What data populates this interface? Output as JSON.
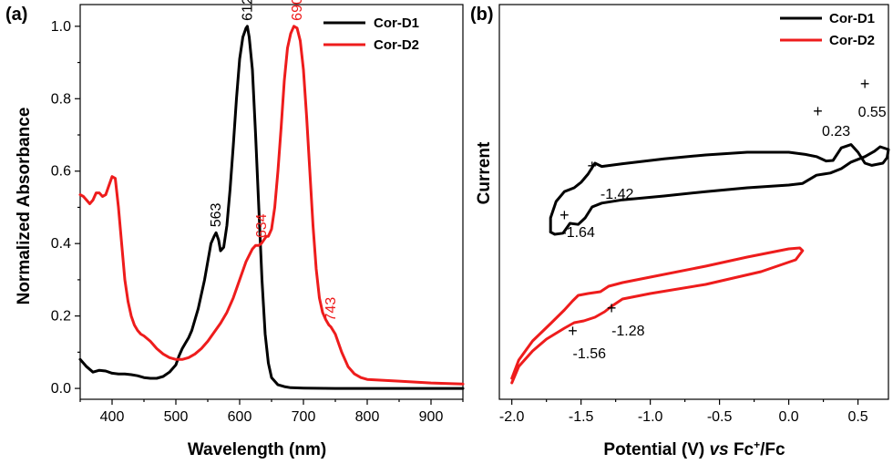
{
  "colors": {
    "cor_d1": "#000000",
    "cor_d2": "#ee1c1c"
  },
  "chart_data": [
    {
      "panel": "(a)",
      "type": "line",
      "xlabel": "Wavelength (nm)",
      "ylabel": "Normalized Absorbance",
      "xlim": [
        350,
        950
      ],
      "ylim": [
        -0.03,
        1.06
      ],
      "xticks": [
        "400",
        "500",
        "600",
        "700",
        "800",
        "900"
      ],
      "yticks": [
        "0.0",
        "0.2",
        "0.4",
        "0.6",
        "0.8",
        "1.0"
      ],
      "legend": {
        "placement": "top-right"
      },
      "series": [
        {
          "name": "Cor-D1",
          "color": "#000000",
          "x": [
            350,
            360,
            370,
            380,
            390,
            400,
            410,
            420,
            430,
            440,
            450,
            460,
            470,
            480,
            490,
            500,
            505,
            510,
            515,
            520,
            525,
            530,
            535,
            540,
            545,
            550,
            555,
            560,
            563,
            567,
            570,
            575,
            580,
            585,
            590,
            595,
            600,
            605,
            610,
            612,
            615,
            620,
            625,
            630,
            635,
            640,
            645,
            650,
            660,
            670,
            680,
            700,
            750,
            800,
            850,
            900,
            950
          ],
          "y": [
            0.08,
            0.06,
            0.045,
            0.05,
            0.048,
            0.042,
            0.04,
            0.04,
            0.038,
            0.035,
            0.03,
            0.028,
            0.028,
            0.033,
            0.045,
            0.065,
            0.09,
            0.11,
            0.125,
            0.14,
            0.16,
            0.19,
            0.22,
            0.26,
            0.3,
            0.35,
            0.4,
            0.42,
            0.43,
            0.41,
            0.38,
            0.39,
            0.45,
            0.55,
            0.67,
            0.8,
            0.91,
            0.97,
            0.995,
            1.0,
            0.97,
            0.88,
            0.7,
            0.5,
            0.3,
            0.15,
            0.07,
            0.03,
            0.01,
            0.005,
            0.002,
            0.001,
            0.0,
            0.0,
            0.0,
            0.0,
            0.0
          ]
        },
        {
          "name": "Cor-D2",
          "color": "#ee1c1c",
          "x": [
            350,
            355,
            360,
            365,
            370,
            375,
            380,
            385,
            390,
            395,
            400,
            405,
            410,
            415,
            420,
            425,
            430,
            435,
            440,
            445,
            450,
            460,
            470,
            480,
            490,
            500,
            510,
            520,
            530,
            540,
            550,
            560,
            570,
            580,
            590,
            600,
            610,
            620,
            625,
            630,
            634,
            638,
            642,
            645,
            650,
            655,
            660,
            665,
            670,
            675,
            680,
            685,
            690,
            695,
            700,
            705,
            710,
            715,
            720,
            725,
            730,
            735,
            740,
            743,
            750,
            760,
            770,
            780,
            790,
            800,
            850,
            900,
            950
          ],
          "y": [
            0.535,
            0.53,
            0.52,
            0.51,
            0.52,
            0.54,
            0.54,
            0.53,
            0.535,
            0.56,
            0.585,
            0.58,
            0.5,
            0.4,
            0.3,
            0.24,
            0.2,
            0.175,
            0.16,
            0.15,
            0.145,
            0.13,
            0.11,
            0.095,
            0.085,
            0.08,
            0.08,
            0.085,
            0.095,
            0.11,
            0.13,
            0.155,
            0.18,
            0.21,
            0.25,
            0.3,
            0.35,
            0.385,
            0.395,
            0.395,
            0.4,
            0.41,
            0.42,
            0.42,
            0.44,
            0.5,
            0.6,
            0.72,
            0.85,
            0.94,
            0.98,
            1.0,
            0.995,
            0.96,
            0.88,
            0.75,
            0.6,
            0.45,
            0.33,
            0.25,
            0.21,
            0.19,
            0.175,
            0.17,
            0.15,
            0.1,
            0.06,
            0.04,
            0.03,
            0.025,
            0.02,
            0.015,
            0.012
          ]
        }
      ],
      "annotations": [
        {
          "text": "612",
          "x": 612,
          "y": 1.0,
          "color": "#000000"
        },
        {
          "text": "563",
          "x": 563,
          "y": 0.43,
          "color": "#000000"
        },
        {
          "text": "690",
          "x": 690,
          "y": 1.0,
          "color": "#ee1c1c"
        },
        {
          "text": "634",
          "x": 634,
          "y": 0.4,
          "color": "#ee1c1c"
        },
        {
          "text": "743",
          "x": 743,
          "y": 0.17,
          "color": "#ee1c1c"
        }
      ]
    },
    {
      "panel": "(b)",
      "type": "line",
      "xlabel_parts": [
        "Potential (V) ",
        "vs",
        " Fc",
        "+",
        "/Fc"
      ],
      "ylabel": "Current",
      "xlim": [
        -2.09,
        0.72
      ],
      "xticks": [
        "-2.0",
        "-1.5",
        "-1.0",
        "-0.5",
        "0.0",
        "0.5"
      ],
      "y_ticks_shown": false,
      "legend": {
        "placement": "top-right"
      },
      "series": [
        {
          "name": "Cor-D1",
          "color": "#000000",
          "loop": [
            [
              -1.72,
              -0.86
            ],
            [
              -1.69,
              -0.9
            ],
            [
              -1.63,
              -0.88
            ],
            [
              -1.58,
              -0.7
            ],
            [
              -1.52,
              -0.72
            ],
            [
              -1.47,
              -0.6
            ],
            [
              -1.42,
              -0.4
            ],
            [
              -1.35,
              -0.33
            ],
            [
              -1.2,
              -0.27
            ],
            [
              -0.9,
              -0.2
            ],
            [
              -0.6,
              -0.12
            ],
            [
              -0.3,
              -0.05
            ],
            [
              0.0,
              0.0
            ],
            [
              0.1,
              0.03
            ],
            [
              0.16,
              0.12
            ],
            [
              0.2,
              0.18
            ],
            [
              0.25,
              0.2
            ],
            [
              0.3,
              0.22
            ],
            [
              0.38,
              0.3
            ],
            [
              0.45,
              0.42
            ],
            [
              0.55,
              0.52
            ],
            [
              0.62,
              0.62
            ],
            [
              0.66,
              0.7
            ],
            [
              0.72,
              0.65
            ],
            [
              0.71,
              0.5
            ],
            [
              0.68,
              0.4
            ],
            [
              0.6,
              0.36
            ],
            [
              0.55,
              0.4
            ],
            [
              0.5,
              0.6
            ],
            [
              0.45,
              0.74
            ],
            [
              0.38,
              0.68
            ],
            [
              0.32,
              0.45
            ],
            [
              0.27,
              0.44
            ],
            [
              0.2,
              0.52
            ],
            [
              0.12,
              0.56
            ],
            [
              0.0,
              0.6
            ],
            [
              -0.3,
              0.6
            ],
            [
              -0.6,
              0.55
            ],
            [
              -0.9,
              0.48
            ],
            [
              -1.2,
              0.39
            ],
            [
              -1.35,
              0.34
            ],
            [
              -1.4,
              0.4
            ],
            [
              -1.45,
              0.2
            ],
            [
              -1.5,
              0.05
            ],
            [
              -1.55,
              -0.05
            ],
            [
              -1.62,
              -0.12
            ],
            [
              -1.68,
              -0.3
            ],
            [
              -1.72,
              -0.6
            ],
            [
              -1.72,
              -0.86
            ]
          ],
          "labels": [
            "-1.64",
            "-1.42",
            "0.23",
            "0.55"
          ]
        },
        {
          "name": "Cor-D2",
          "color": "#ee1c1c",
          "loop": [
            [
              -2.0,
              0.0
            ],
            [
              -1.95,
              0.18
            ],
            [
              -1.85,
              0.35
            ],
            [
              -1.75,
              0.48
            ],
            [
              -1.62,
              0.6
            ],
            [
              -1.55,
              0.66
            ],
            [
              -1.48,
              0.68
            ],
            [
              -1.4,
              0.72
            ],
            [
              -1.33,
              0.78
            ],
            [
              -1.28,
              0.84
            ],
            [
              -1.2,
              0.92
            ],
            [
              -1.0,
              0.98
            ],
            [
              -0.6,
              1.08
            ],
            [
              -0.2,
              1.22
            ],
            [
              0.05,
              1.35
            ],
            [
              0.1,
              1.45
            ],
            [
              0.08,
              1.48
            ],
            [
              0.0,
              1.47
            ],
            [
              -0.3,
              1.38
            ],
            [
              -0.6,
              1.28
            ],
            [
              -1.0,
              1.16
            ],
            [
              -1.2,
              1.1
            ],
            [
              -1.3,
              1.06
            ],
            [
              -1.36,
              1.0
            ],
            [
              -1.45,
              0.98
            ],
            [
              -1.52,
              0.96
            ],
            [
              -1.56,
              0.9
            ],
            [
              -1.62,
              0.8
            ],
            [
              -1.72,
              0.65
            ],
            [
              -1.85,
              0.46
            ],
            [
              -1.95,
              0.25
            ],
            [
              -2.0,
              0.05
            ]
          ],
          "labels": [
            "-1.56",
            "-1.28"
          ]
        }
      ]
    }
  ],
  "ui": {
    "panel_a": "(a)",
    "panel_b": "(b)",
    "legend_a": [
      "Cor-D1",
      "Cor-D2"
    ],
    "legend_b": [
      "Cor-D1",
      "Cor-D2"
    ]
  }
}
